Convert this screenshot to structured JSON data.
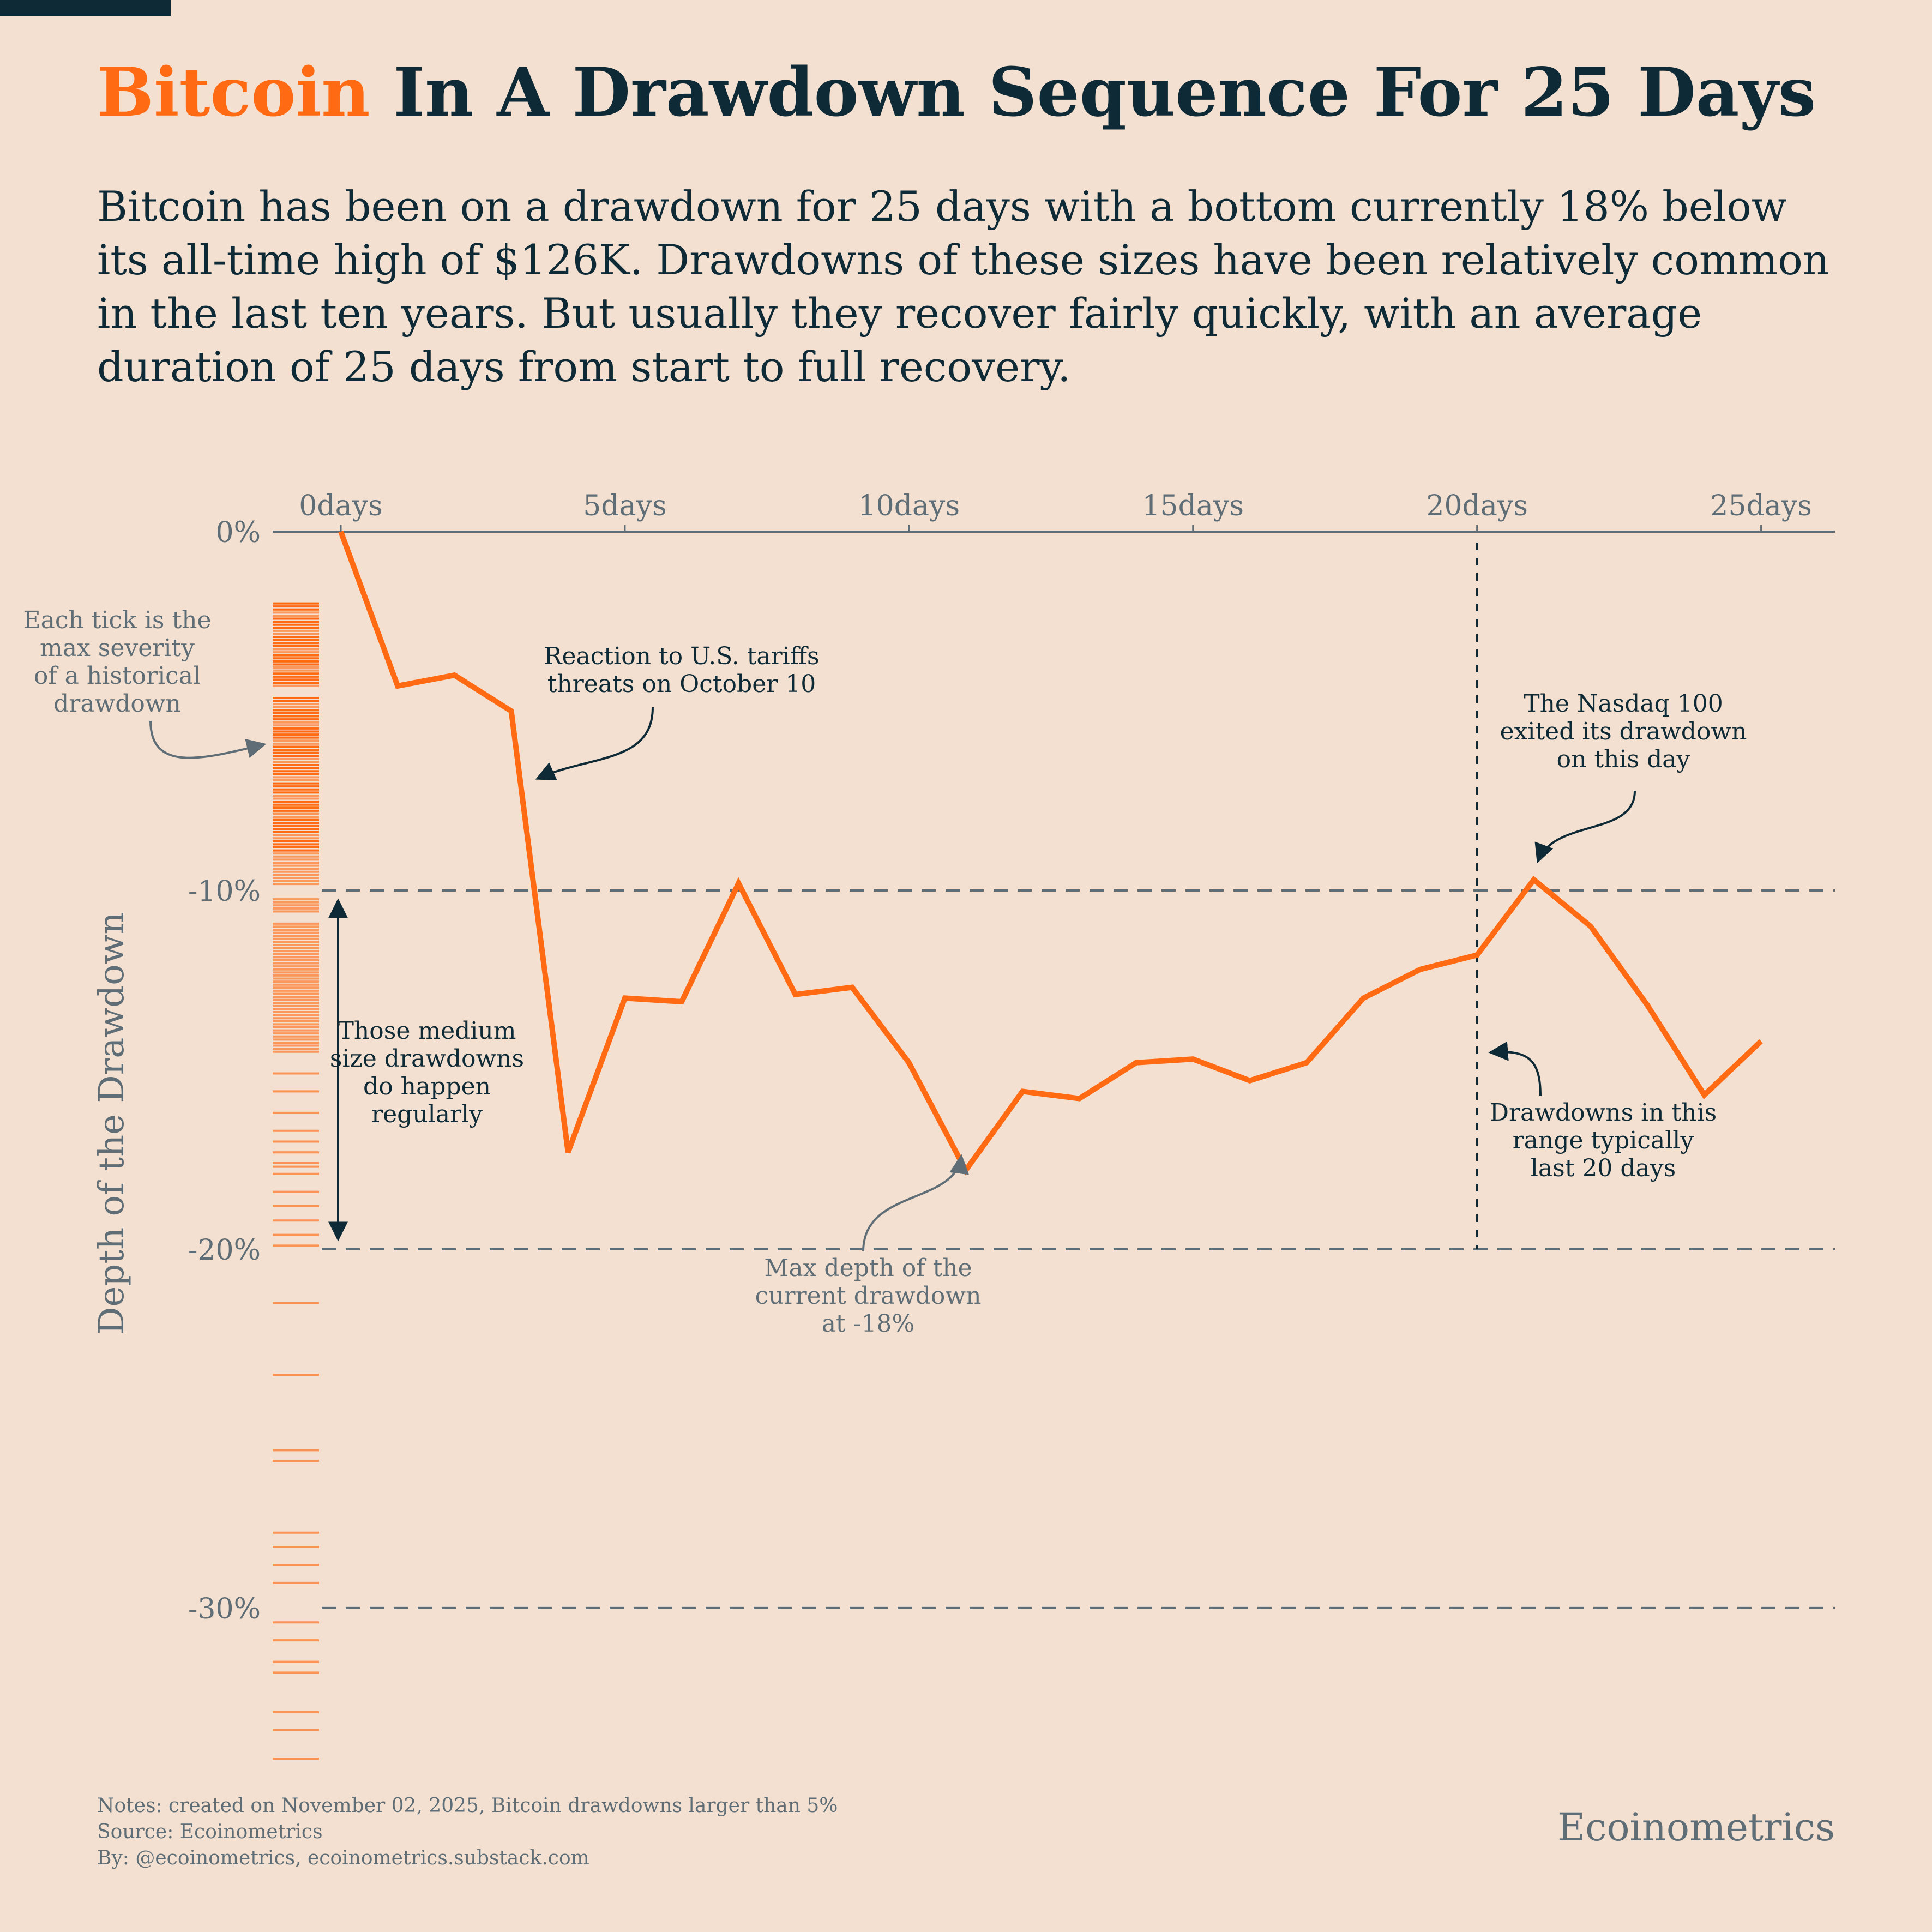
{
  "header": {
    "title_accent": "Bitcoin",
    "title_rest": " In A Drawdown Sequence For 25 Days",
    "subtitle": "Bitcoin has been on a drawdown for 25 days with a bottom currently 18% below its all-time high of $126K. Drawdowns of these sizes have been relatively common in the last ten years. But usually they recover fairly quickly, with an average duration of 25 days from start to full recovery."
  },
  "colors": {
    "accent": "#ff6a13",
    "dark": "#0e2a36",
    "muted": "#5f6e76",
    "background": "#f3e0d0"
  },
  "chart_data": {
    "type": "line",
    "title": "",
    "xlabel": "",
    "ylabel": "Depth of the Drawdown",
    "x_ticks": [
      {
        "value": 0,
        "label": "0days"
      },
      {
        "value": 5,
        "label": "5days"
      },
      {
        "value": 10,
        "label": "10days"
      },
      {
        "value": 15,
        "label": "15days"
      },
      {
        "value": 20,
        "label": "20days"
      },
      {
        "value": 25,
        "label": "25days"
      }
    ],
    "y_ticks": [
      {
        "value": 0,
        "label": "0%"
      },
      {
        "value": -10,
        "label": "-10%"
      },
      {
        "value": -20,
        "label": "-20%"
      },
      {
        "value": -30,
        "label": "-30%"
      }
    ],
    "xlim": [
      -1.2,
      26.3
    ],
    "ylim": [
      -34.5,
      0
    ],
    "reference_lines_y": [
      -10,
      -20,
      -30
    ],
    "reference_line_x": 20,
    "series": [
      {
        "x": [
          0,
          1,
          2,
          3,
          4,
          5,
          6,
          7,
          8,
          9,
          10,
          11,
          12,
          13,
          14,
          15,
          16,
          17,
          18,
          19,
          20,
          21,
          22,
          23,
          24,
          25
        ],
        "y": [
          0,
          -4.3,
          -4.0,
          -5.0,
          -17.3,
          -13.0,
          -13.1,
          -9.8,
          -12.9,
          -12.7,
          -14.8,
          -17.8,
          -15.6,
          -15.8,
          -14.8,
          -14.7,
          -15.3,
          -14.8,
          -13.0,
          -12.2,
          -11.8,
          -9.7,
          -11.0,
          -13.2,
          -15.7,
          -14.2
        ]
      }
    ],
    "historical_drawdown_ticks": {
      "dense_ranges": [
        [
          -2,
          -14.5
        ]
      ],
      "sparse_values": [
        -15.1,
        -15.6,
        -16.2,
        -16.7,
        -17.0,
        -17.3,
        -17.6,
        -17.7,
        -17.9,
        -18.4,
        -18.8,
        -19.2,
        -19.6,
        -19.9,
        -21.5,
        -23.5,
        -25.6,
        -25.9,
        -27.9,
        -28.3,
        -28.8,
        -29.3,
        -30.4,
        -30.9,
        -31.5,
        -31.8,
        -32.9,
        -33.4,
        -34.2
      ]
    },
    "annotations": [
      {
        "id": "tick_note",
        "text": [
          "Each tick is the",
          "max severity",
          "of a historical",
          "drawdown"
        ]
      },
      {
        "id": "tariffs",
        "text": [
          "Reaction to U.S. tariffs",
          "threats on October 10"
        ]
      },
      {
        "id": "nasdaq",
        "text": [
          "The Nasdaq 100",
          "exited its drawdown",
          "on this day"
        ]
      },
      {
        "id": "medium",
        "text": [
          "Those medium",
          "size drawdowns",
          "do happen",
          "regularly"
        ]
      },
      {
        "id": "range",
        "text": [
          "Drawdowns in this",
          "range typically",
          "last 20 days"
        ]
      },
      {
        "id": "maxdepth",
        "text": [
          "Max depth of the",
          "current drawdown",
          "at -18%"
        ]
      }
    ]
  },
  "footer": {
    "notes": "Notes: created on November 02, 2025, Bitcoin drawdowns larger than 5%",
    "source": "Source: Ecoinometrics",
    "by": "By: @ecoinometrics, ecoinometrics.substack.com",
    "brand": "Ecoinometrics"
  }
}
